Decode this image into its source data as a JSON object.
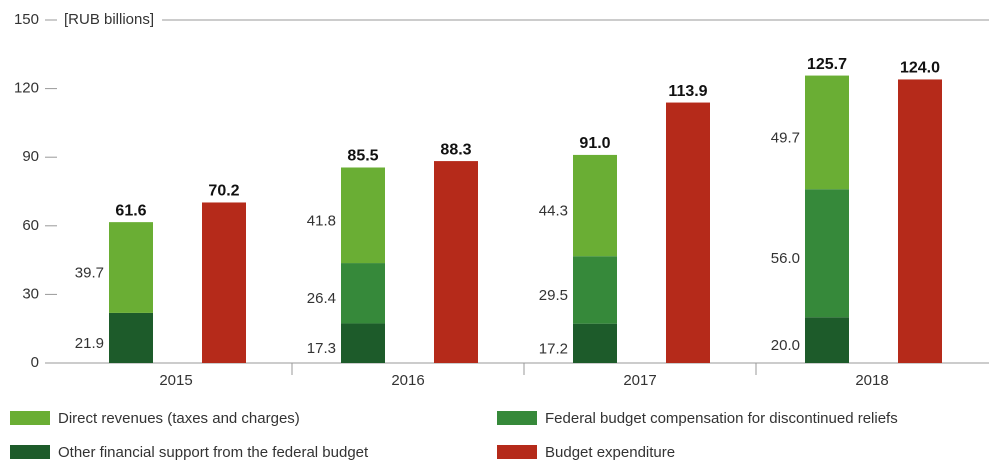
{
  "chart_data": {
    "type": "bar",
    "y_axis_label": "[RUB billions]",
    "categories": [
      "2015",
      "2016",
      "2017",
      "2018"
    ],
    "ylim": [
      0,
      150
    ],
    "yticks": [
      0,
      30,
      60,
      90,
      120,
      150
    ],
    "series": [
      {
        "name": "Direct revenues (taxes and charges)",
        "color": "#6aae34",
        "stacked": true,
        "values": [
          39.7,
          41.8,
          44.3,
          49.7
        ],
        "value_labels": [
          "39.7",
          "41.8",
          "44.3",
          "49.7"
        ]
      },
      {
        "name": "Federal budget compensation for discontinued reliefs",
        "color": "#36893a",
        "stacked": true,
        "values": [
          null,
          26.4,
          29.5,
          56.0
        ],
        "value_labels": [
          null,
          "26.4",
          "29.5",
          "56.0"
        ]
      },
      {
        "name": "Other financial support from the federal budget",
        "color": "#1d5b2a",
        "stacked": true,
        "values": [
          21.9,
          17.3,
          17.2,
          20.0
        ],
        "value_labels": [
          "21.9",
          "17.3",
          "17.2",
          "20.0"
        ]
      },
      {
        "name": "Budget expenditure",
        "color": "#b52a1a",
        "stacked": false,
        "values": [
          70.2,
          88.3,
          113.9,
          124.0
        ],
        "value_labels": [
          "70.2",
          "88.3",
          "113.9",
          "124.0"
        ]
      }
    ],
    "totals": {
      "values": [
        61.6,
        85.5,
        91.0,
        125.7
      ],
      "value_labels": [
        "61.6",
        "85.5",
        "91.0",
        "125.7"
      ]
    }
  }
}
